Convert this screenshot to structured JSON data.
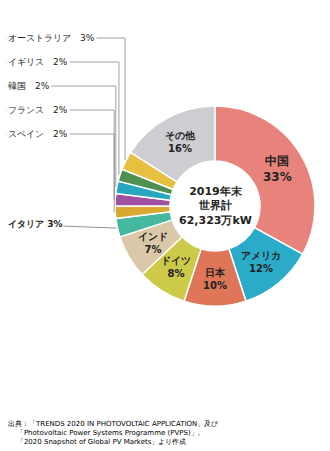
{
  "chart_data": {
    "type": "donut",
    "categories": [
      "中国",
      "アメリカ",
      "日本",
      "ドイツ",
      "インド",
      "イタリア",
      "スペイン",
      "フランス",
      "韓国",
      "イギリス",
      "オーストラリア",
      "その他"
    ],
    "values": [
      33,
      12,
      10,
      8,
      7,
      3,
      2,
      2,
      2,
      2,
      3,
      16
    ],
    "value_labels": [
      "中国\n33%",
      "アメリカ\n12%",
      "日本\n10%",
      "ドイツ\n8%",
      "インド\n7%",
      "イタリア 3%",
      "スペイン　2%",
      "フランス　2%",
      "韓国　2%",
      "イギリス　2%",
      "オーストラリア　3%",
      "その他\n16%"
    ],
    "colors": [
      "#E8837B",
      "#2AACC8",
      "#E07658",
      "#CCCA48",
      "#DAC8A8",
      "#46B8A0",
      "#D8A830",
      "#A050A0",
      "#28A8C0",
      "#4E9050",
      "#E8C040",
      "#CECDD2"
    ],
    "data_labels": true,
    "annotations": [
      "2019年末\n世界計\n62,323万kW",
      "出典：「TRENDS 2020 IN PHOTOVOLTAIC APPLICATION」及び\n    「Photovoltaic Power Systems Programme (PVPS)」,\n    「2020 Snapshot of Global PV Markets」より作成"
    ]
  }
}
